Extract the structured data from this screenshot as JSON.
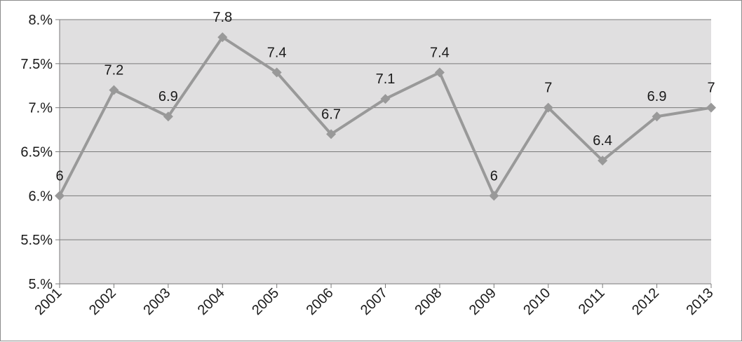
{
  "chart_data": {
    "type": "line",
    "title": "",
    "xlabel": "",
    "ylabel": "",
    "categories": [
      "2001",
      "2002",
      "2003",
      "2004",
      "2005",
      "2006",
      "2007",
      "2008",
      "2009",
      "2010",
      "2011",
      "2012",
      "2013"
    ],
    "values": [
      6,
      7.2,
      6.9,
      7.8,
      7.4,
      6.7,
      7.1,
      7.4,
      6,
      7,
      6.4,
      6.9,
      7
    ],
    "data_labels": [
      "6",
      "7.2",
      "6.9",
      "7.8",
      "7.4",
      "6.7",
      "7.1",
      "7.4",
      "6",
      "7",
      "6.4",
      "6.9",
      "7"
    ],
    "ylim": [
      5,
      8
    ],
    "yticks": [
      5,
      5.5,
      6,
      6.5,
      7,
      7.5,
      8
    ],
    "ytick_labels": [
      "5.%",
      "5.5%",
      "6.%",
      "6.5%",
      "7.%",
      "7.5%",
      "8.%"
    ],
    "grid": true,
    "legend": "none",
    "colors": {
      "plot_background": "#e0dfe0",
      "line": "#999999",
      "marker": "#999999",
      "gridline": "#7a7a7a",
      "axis": "#7a7a7a"
    }
  }
}
